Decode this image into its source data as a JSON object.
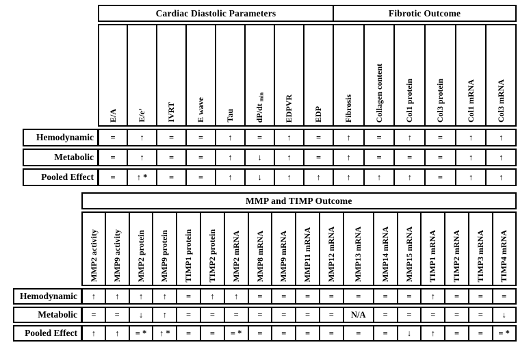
{
  "colors": {
    "border": "#000000",
    "background": "#ffffff",
    "text": "#000000"
  },
  "symbols": {
    "increase": "↑",
    "decrease": "↓",
    "no_change": "=",
    "not_available": "N/A",
    "significant_marker": "*"
  },
  "tables": [
    {
      "id": "cardiac-fibrotic",
      "groups": [
        {
          "label": "Cardiac Diastolic Parameters",
          "span": 8
        },
        {
          "label": "Fibrotic Outcome",
          "span": 6
        }
      ],
      "columns": [
        {
          "label": "E/A"
        },
        {
          "label": "E/e’"
        },
        {
          "label": "IVRT"
        },
        {
          "label": "E wave"
        },
        {
          "label": "Tau"
        },
        {
          "label": "dP/dt ",
          "sub": "min"
        },
        {
          "label": "EDPVR"
        },
        {
          "label": "EDP"
        },
        {
          "label": "Fibrosis"
        },
        {
          "label": "Collagen content"
        },
        {
          "label": "Col1 protein"
        },
        {
          "label": "Col3 protein"
        },
        {
          "label": "Col1 mRNA"
        },
        {
          "label": "Col3 mRNA"
        }
      ],
      "rows": [
        {
          "label": "Hemodynamic",
          "values": [
            "=",
            "↑",
            "=",
            "=",
            "↑",
            "=",
            "↑",
            "=",
            "↑",
            "=",
            "↑",
            "=",
            "↑",
            "↑"
          ]
        },
        {
          "label": "Metabolic",
          "values": [
            "=",
            "↑",
            "=",
            "=",
            "↑",
            "↓",
            "↑",
            "=",
            "↑",
            "=",
            "=",
            "=",
            "↑",
            "↑"
          ]
        },
        {
          "label": "Pooled Effect",
          "values": [
            "=",
            "↑ *",
            "=",
            "=",
            "↑",
            "↓",
            "↑",
            "↑",
            "↑",
            "↑",
            "↑",
            "=",
            "↑",
            "↑"
          ]
        }
      ]
    },
    {
      "id": "mmp-timp",
      "groups": [
        {
          "label": "MMP and TIMP Outcome",
          "span": 18
        }
      ],
      "columns": [
        {
          "label": "MMP2 activity"
        },
        {
          "label": "MMP9 activity"
        },
        {
          "label": "MMP2 protein"
        },
        {
          "label": "MMP9 protein"
        },
        {
          "label": "TIMP1 protein"
        },
        {
          "label": "TIMP2 protein"
        },
        {
          "label": "MMP2 mRNA"
        },
        {
          "label": "MMP8 mRNA"
        },
        {
          "label": "MMP9 mRNA"
        },
        {
          "label": "MMP11 mRNA"
        },
        {
          "label": "MMP12 mRNA"
        },
        {
          "label": "MMP13 mRNA"
        },
        {
          "label": "MMP14 mRNA"
        },
        {
          "label": "MMP15 mRNA"
        },
        {
          "label": "TIMP1 mRNA"
        },
        {
          "label": "TIMP2 mRNA"
        },
        {
          "label": "TIMP3 mRNA"
        },
        {
          "label": "TIMP4 mRNA"
        }
      ],
      "rows": [
        {
          "label": "Hemodynamic",
          "values": [
            "↑",
            "↑",
            "↑",
            "↑",
            "=",
            "↑",
            "↑",
            "=",
            "=",
            "=",
            "=",
            "=",
            "=",
            "=",
            "↑",
            "=",
            "=",
            "="
          ]
        },
        {
          "label": "Metabolic",
          "values": [
            "=",
            "=",
            "↓",
            "↑",
            "=",
            "=",
            "=",
            "=",
            "=",
            "=",
            "=",
            "N/A",
            "=",
            "=",
            "=",
            "=",
            "=",
            "↓"
          ]
        },
        {
          "label": "Pooled Effect",
          "values": [
            "↑",
            "↑",
            "= *",
            "↑ *",
            "=",
            "=",
            "= *",
            "=",
            "=",
            "=",
            "=",
            "=",
            "=",
            "↓",
            "↑",
            "=",
            "=",
            "= *"
          ]
        }
      ]
    }
  ]
}
